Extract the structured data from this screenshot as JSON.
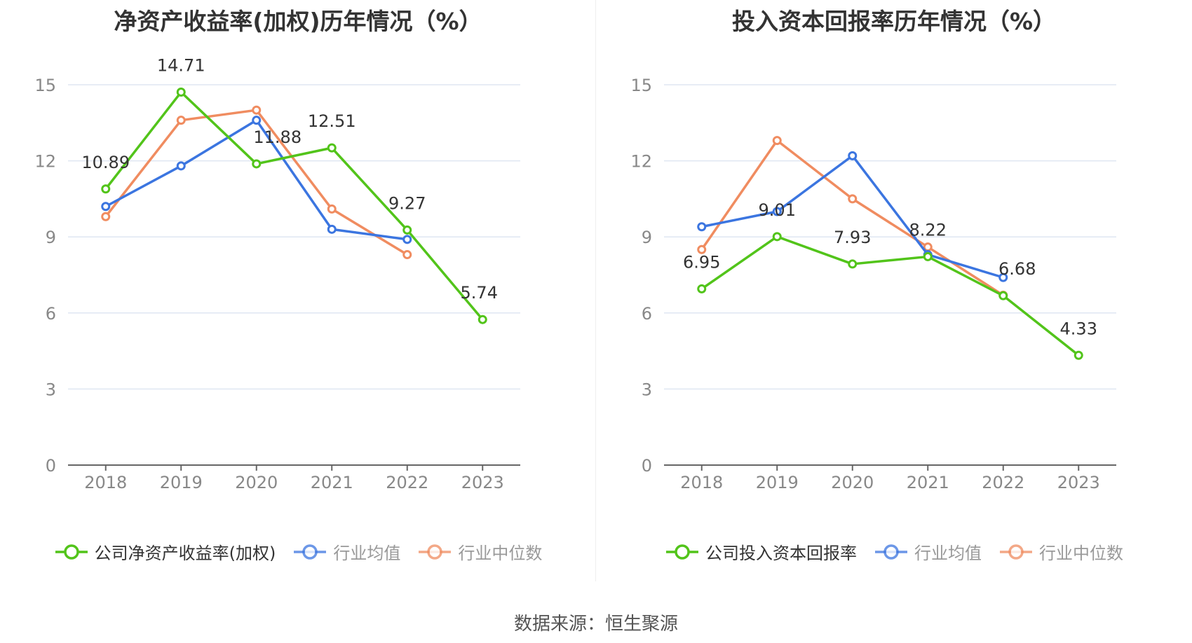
{
  "source": "数据来源：恒生聚源",
  "colors": {
    "company": "#52c41a",
    "avg": "#3b75e0",
    "median": "#f08c60",
    "grid": "#dfe6f2",
    "axis": "#666666"
  },
  "chart_data": [
    {
      "type": "line",
      "title": "净资产收益率(加权)历年情况（%）",
      "x": [
        "2018",
        "2019",
        "2020",
        "2021",
        "2022",
        "2023"
      ],
      "ylim": [
        0,
        15
      ],
      "yticks": [
        "0",
        "3",
        "6",
        "9",
        "12",
        "15"
      ],
      "grid": true,
      "legend_position": "bottom",
      "series": [
        {
          "name": "公司净资产收益率(加权)",
          "key": "company",
          "values": [
            10.89,
            14.71,
            11.88,
            12.51,
            9.27,
            5.74
          ],
          "labels": [
            "10.89",
            "14.71",
            "11.88",
            "12.51",
            "9.27",
            "5.74"
          ]
        },
        {
          "name": "行业均值",
          "key": "avg",
          "values": [
            10.2,
            11.8,
            13.6,
            9.3,
            8.9,
            null
          ]
        },
        {
          "name": "行业中位数",
          "key": "median",
          "values": [
            9.8,
            13.6,
            14.0,
            10.1,
            8.3,
            null
          ]
        }
      ]
    },
    {
      "type": "line",
      "title": "投入资本回报率历年情况（%）",
      "x": [
        "2018",
        "2019",
        "2020",
        "2021",
        "2022",
        "2023"
      ],
      "ylim": [
        0,
        15
      ],
      "yticks": [
        "0",
        "3",
        "6",
        "9",
        "12",
        "15"
      ],
      "grid": true,
      "legend_position": "bottom",
      "series": [
        {
          "name": "公司投入资本回报率",
          "key": "company",
          "values": [
            6.95,
            9.01,
            7.93,
            8.22,
            6.68,
            4.33
          ],
          "labels": [
            "6.95",
            "9.01",
            "7.93",
            "8.22",
            "6.68",
            "4.33"
          ]
        },
        {
          "name": "行业均值",
          "key": "avg",
          "values": [
            9.4,
            10.0,
            12.2,
            8.3,
            7.4,
            null
          ]
        },
        {
          "name": "行业中位数",
          "key": "median",
          "values": [
            8.5,
            12.8,
            10.5,
            8.6,
            6.7,
            null
          ]
        }
      ]
    }
  ]
}
